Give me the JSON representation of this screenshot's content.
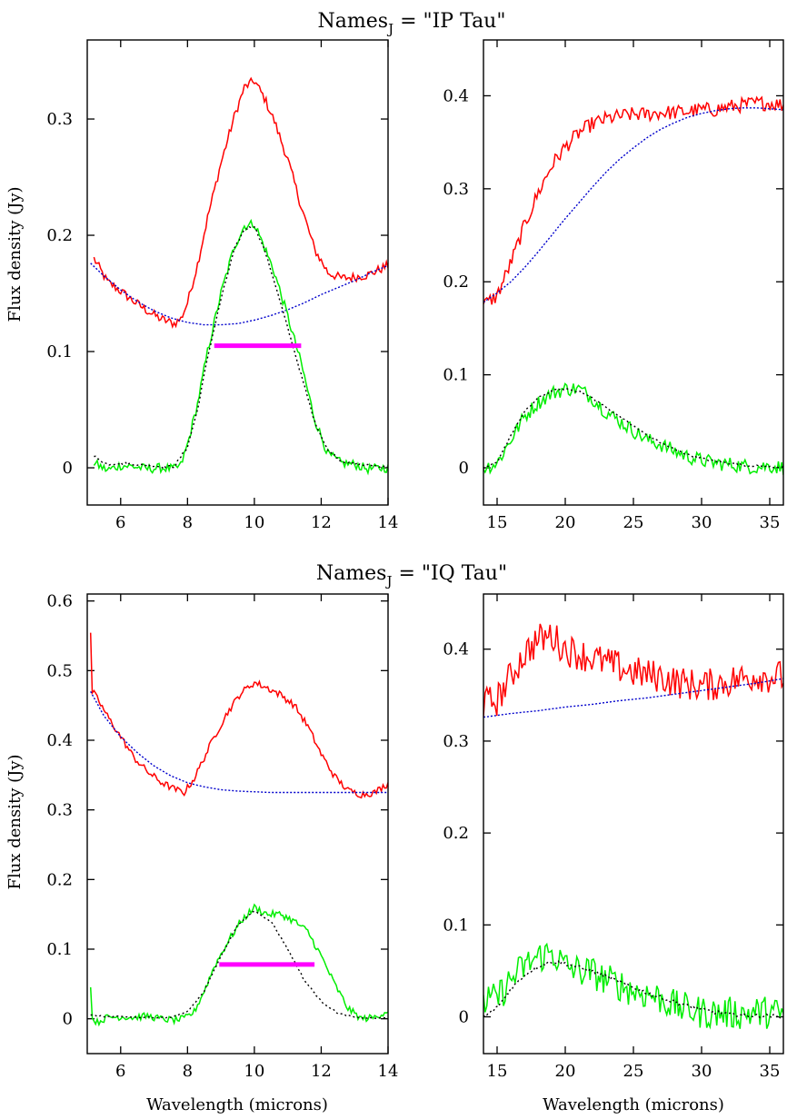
{
  "figure": {
    "ylabel": "Flux density (Jy)",
    "xlabel": "Wavelength (microns)"
  },
  "colors": {
    "observed": "#ff0000",
    "continuum": "#0000cc",
    "residual": "#00ee00",
    "model": "#000000",
    "band": "#ff00ff",
    "axis": "#000000"
  },
  "chart_data": [
    {
      "type": "line",
      "group_title": "Names_J = \"IP Tau\"",
      "title_main": "Names",
      "title_sub": "J",
      "title_rest": " = \"IP Tau\"",
      "panel": "left",
      "xlabel": "",
      "ylabel": "Flux density (Jy)",
      "xlim": [
        5.0,
        14.0
      ],
      "ylim": [
        -0.032,
        0.368
      ],
      "xticks": [
        6,
        8,
        10,
        12,
        14
      ],
      "yticks": [
        0,
        0.1,
        0.2,
        0.3
      ],
      "ytick_labels": [
        "0",
        "0.1",
        "0.2",
        "0.3"
      ],
      "noise": 0.004,
      "series": [
        {
          "name": "observed",
          "color": "#ff0000",
          "dash": "",
          "jitter": 0.004,
          "x": [
            5.2,
            5.6,
            6.0,
            6.4,
            6.8,
            7.2,
            7.6,
            7.8,
            8.0,
            8.3,
            8.6,
            9.0,
            9.4,
            9.7,
            10.0,
            10.3,
            10.6,
            11.0,
            11.4,
            11.8,
            12.2,
            12.6,
            13.0,
            13.4,
            14.0
          ],
          "y": [
            0.18,
            0.16,
            0.152,
            0.143,
            0.135,
            0.128,
            0.124,
            0.128,
            0.142,
            0.175,
            0.215,
            0.262,
            0.302,
            0.327,
            0.333,
            0.318,
            0.298,
            0.265,
            0.225,
            0.188,
            0.168,
            0.163,
            0.164,
            0.166,
            0.174
          ]
        },
        {
          "name": "continuum",
          "color": "#0000cc",
          "dash": "2,2",
          "jitter": 0,
          "x": [
            5.1,
            5.5,
            6.0,
            6.5,
            7.0,
            7.5,
            8.0,
            8.5,
            9.0,
            9.5,
            10.0,
            10.5,
            11.0,
            11.5,
            12.0,
            12.5,
            13.0,
            13.5,
            14.0
          ],
          "y": [
            0.176,
            0.165,
            0.153,
            0.143,
            0.135,
            0.129,
            0.125,
            0.123,
            0.123,
            0.124,
            0.127,
            0.131,
            0.136,
            0.142,
            0.149,
            0.155,
            0.161,
            0.168,
            0.174
          ]
        },
        {
          "name": "residual",
          "color": "#00ee00",
          "dash": "",
          "jitter": 0.004,
          "x": [
            5.2,
            5.6,
            6.0,
            6.4,
            6.8,
            7.2,
            7.6,
            7.8,
            8.0,
            8.3,
            8.6,
            9.0,
            9.4,
            9.7,
            10.0,
            10.3,
            10.6,
            11.0,
            11.4,
            11.8,
            12.2,
            12.6,
            13.0,
            13.4,
            14.0
          ],
          "y": [
            0.004,
            -0.002,
            0.002,
            0.001,
            -0.001,
            0.0,
            -0.001,
            0.002,
            0.02,
            0.055,
            0.1,
            0.15,
            0.19,
            0.208,
            0.21,
            0.19,
            0.168,
            0.13,
            0.09,
            0.042,
            0.012,
            0.004,
            0.003,
            -0.001,
            0.0
          ]
        },
        {
          "name": "model",
          "color": "#000000",
          "dash": "2,3",
          "jitter": 0.001,
          "x": [
            5.2,
            5.6,
            6.0,
            6.4,
            6.8,
            7.2,
            7.6,
            8.0,
            8.3,
            8.6,
            9.0,
            9.4,
            9.7,
            10.0,
            10.3,
            10.6,
            11.0,
            11.4,
            11.8,
            12.2,
            12.6,
            13.0,
            13.4,
            14.0
          ],
          "y": [
            0.01,
            0.003,
            0.004,
            0.003,
            0.002,
            0.001,
            0.001,
            0.018,
            0.05,
            0.095,
            0.145,
            0.188,
            0.205,
            0.208,
            0.188,
            0.16,
            0.12,
            0.08,
            0.04,
            0.015,
            0.006,
            0.003,
            0.002,
            0.001
          ]
        }
      ],
      "band": {
        "x": [
          8.8,
          11.4
        ],
        "y": 0.105
      }
    },
    {
      "type": "line",
      "panel": "right",
      "xlabel": "",
      "xlim": [
        14.0,
        36.0
      ],
      "ylim": [
        -0.04,
        0.46
      ],
      "xticks": [
        15,
        20,
        25,
        30,
        35
      ],
      "yticks": [
        0,
        0.1,
        0.2,
        0.3,
        0.4
      ],
      "ytick_labels": [
        "0",
        "0.1",
        "0.2",
        "0.3",
        "0.4"
      ],
      "series": [
        {
          "name": "observed",
          "color": "#ff0000",
          "dash": "",
          "jitter": 0.008,
          "x": [
            14.0,
            15.0,
            16.0,
            17.0,
            18.0,
            19.0,
            20.0,
            21.0,
            22.0,
            23.0,
            24.0,
            25.0,
            26.0,
            27.0,
            28.0,
            29.0,
            30.0,
            31.0,
            32.0,
            33.0,
            34.0,
            35.0,
            36.0
          ],
          "y": [
            0.175,
            0.185,
            0.22,
            0.26,
            0.295,
            0.325,
            0.345,
            0.36,
            0.37,
            0.375,
            0.378,
            0.38,
            0.38,
            0.382,
            0.382,
            0.383,
            0.385,
            0.385,
            0.388,
            0.39,
            0.392,
            0.392,
            0.39
          ]
        },
        {
          "name": "continuum",
          "color": "#0000cc",
          "dash": "2,2",
          "jitter": 0,
          "x": [
            14.0,
            15.0,
            16.0,
            17.0,
            18.0,
            19.0,
            20.0,
            21.0,
            22.0,
            23.0,
            24.0,
            25.0,
            26.0,
            27.0,
            28.0,
            29.0,
            30.0,
            31.0,
            32.0,
            33.0,
            34.0,
            35.0,
            36.0
          ],
          "y": [
            0.178,
            0.188,
            0.2,
            0.215,
            0.232,
            0.25,
            0.268,
            0.285,
            0.302,
            0.318,
            0.332,
            0.344,
            0.355,
            0.364,
            0.371,
            0.377,
            0.381,
            0.384,
            0.386,
            0.387,
            0.387,
            0.386,
            0.385
          ]
        },
        {
          "name": "residual",
          "color": "#00ee00",
          "dash": "",
          "jitter": 0.008,
          "x": [
            14.0,
            15.0,
            16.0,
            17.0,
            18.0,
            19.0,
            20.0,
            21.0,
            22.0,
            23.0,
            24.0,
            25.0,
            26.0,
            27.0,
            28.0,
            29.0,
            30.0,
            31.0,
            32.0,
            33.0,
            34.0,
            35.0,
            36.0
          ],
          "y": [
            0.0,
            0.005,
            0.03,
            0.055,
            0.07,
            0.08,
            0.085,
            0.085,
            0.075,
            0.06,
            0.05,
            0.04,
            0.03,
            0.025,
            0.018,
            0.012,
            0.008,
            0.005,
            0.004,
            0.002,
            0.001,
            0.002,
            0.0
          ]
        },
        {
          "name": "model",
          "color": "#000000",
          "dash": "2,3",
          "jitter": 0.001,
          "x": [
            14.0,
            15.0,
            16.0,
            17.0,
            18.0,
            19.0,
            20.0,
            21.0,
            22.0,
            23.0,
            24.0,
            25.0,
            26.0,
            27.0,
            28.0,
            29.0,
            30.0,
            31.0,
            32.0,
            33.0,
            34.0,
            35.0,
            36.0
          ],
          "y": [
            0.0,
            0.005,
            0.035,
            0.06,
            0.075,
            0.083,
            0.085,
            0.082,
            0.075,
            0.065,
            0.055,
            0.045,
            0.035,
            0.027,
            0.02,
            0.014,
            0.01,
            0.007,
            0.005,
            0.003,
            0.002,
            0.001,
            0.001
          ]
        }
      ]
    },
    {
      "type": "line",
      "group_title": "Names_J = \"IQ Tau\"",
      "title_main": "Names",
      "title_sub": "J",
      "title_rest": " = \"IQ Tau\"",
      "panel": "left",
      "xlabel": "Wavelength (microns)",
      "ylabel": "Flux density (Jy)",
      "xlim": [
        5.0,
        14.0
      ],
      "ylim": [
        -0.05,
        0.61
      ],
      "xticks": [
        6,
        8,
        10,
        12,
        14
      ],
      "yticks": [
        0,
        0.1,
        0.2,
        0.3,
        0.4,
        0.5,
        0.6
      ],
      "ytick_labels": [
        "0",
        "0.1",
        "0.2",
        "0.3",
        "0.4",
        "0.5",
        "0.6"
      ],
      "series": [
        {
          "name": "observed",
          "color": "#ff0000",
          "dash": "",
          "jitter": 0.005,
          "x": [
            5.1,
            5.15,
            5.3,
            5.6,
            6.0,
            6.4,
            6.8,
            7.2,
            7.6,
            7.9,
            8.2,
            8.5,
            8.8,
            9.2,
            9.6,
            10.0,
            10.4,
            10.8,
            11.2,
            11.6,
            12.0,
            12.4,
            12.8,
            13.2,
            13.6,
            14.0
          ],
          "y": [
            0.55,
            0.47,
            0.46,
            0.435,
            0.405,
            0.375,
            0.355,
            0.34,
            0.33,
            0.325,
            0.345,
            0.375,
            0.405,
            0.44,
            0.468,
            0.483,
            0.475,
            0.465,
            0.45,
            0.42,
            0.38,
            0.348,
            0.328,
            0.322,
            0.325,
            0.338
          ]
        },
        {
          "name": "continuum",
          "color": "#0000cc",
          "dash": "2,2",
          "jitter": 0,
          "x": [
            5.1,
            5.5,
            6.0,
            6.5,
            7.0,
            7.5,
            8.0,
            8.5,
            9.0,
            9.5,
            10.0,
            10.5,
            11.0,
            11.5,
            12.0,
            12.5,
            13.0,
            13.5,
            14.0
          ],
          "y": [
            0.47,
            0.435,
            0.405,
            0.382,
            0.363,
            0.349,
            0.339,
            0.333,
            0.329,
            0.327,
            0.326,
            0.325,
            0.325,
            0.325,
            0.325,
            0.325,
            0.325,
            0.325,
            0.325
          ]
        },
        {
          "name": "residual",
          "color": "#00ee00",
          "dash": "",
          "jitter": 0.005,
          "x": [
            5.1,
            5.15,
            5.3,
            5.6,
            6.0,
            6.4,
            6.8,
            7.2,
            7.6,
            7.9,
            8.2,
            8.5,
            8.8,
            9.2,
            9.6,
            10.0,
            10.4,
            10.8,
            11.2,
            11.6,
            12.0,
            12.4,
            12.8,
            13.2,
            13.6,
            14.0
          ],
          "y": [
            0.05,
            0.0,
            -0.005,
            0.002,
            0.003,
            0.002,
            0.004,
            0.0,
            -0.002,
            0.0,
            0.01,
            0.04,
            0.075,
            0.11,
            0.14,
            0.16,
            0.15,
            0.15,
            0.14,
            0.125,
            0.09,
            0.05,
            0.015,
            0.0,
            0.002,
            0.012
          ]
        },
        {
          "name": "model",
          "color": "#000000",
          "dash": "2,3",
          "jitter": 0.001,
          "x": [
            5.1,
            5.5,
            6.0,
            6.5,
            7.0,
            7.5,
            8.0,
            8.5,
            9.0,
            9.5,
            10.0,
            10.5,
            11.0,
            11.5,
            12.0,
            12.5,
            13.0,
            13.5,
            14.0
          ],
          "y": [
            0.005,
            0.003,
            0.003,
            0.002,
            0.002,
            0.002,
            0.01,
            0.04,
            0.09,
            0.135,
            0.155,
            0.14,
            0.1,
            0.055,
            0.025,
            0.008,
            0.002,
            0.001,
            0.001
          ]
        }
      ],
      "band": {
        "x": [
          8.95,
          11.8
        ],
        "y": 0.078
      }
    },
    {
      "type": "line",
      "panel": "right",
      "xlabel": "Wavelength (microns)",
      "xlim": [
        14.0,
        36.0
      ],
      "ylim": [
        -0.04,
        0.46
      ],
      "xticks": [
        15,
        20,
        25,
        30,
        35
      ],
      "yticks": [
        0,
        0.1,
        0.2,
        0.3,
        0.4
      ],
      "ytick_labels": [
        "0",
        "0.1",
        "0.2",
        "0.3",
        "0.4"
      ],
      "series": [
        {
          "name": "observed",
          "color": "#ff0000",
          "dash": "",
          "jitter": 0.018,
          "x": [
            14.0,
            15.0,
            16.0,
            17.0,
            18.0,
            19.0,
            20.0,
            21.0,
            22.0,
            23.0,
            24.0,
            25.0,
            26.0,
            27.0,
            28.0,
            29.0,
            30.0,
            31.0,
            32.0,
            33.0,
            34.0,
            35.0,
            36.0
          ],
          "y": [
            0.34,
            0.345,
            0.37,
            0.395,
            0.41,
            0.415,
            0.4,
            0.395,
            0.39,
            0.385,
            0.38,
            0.375,
            0.372,
            0.37,
            0.365,
            0.362,
            0.36,
            0.362,
            0.365,
            0.368,
            0.372,
            0.37,
            0.37
          ]
        },
        {
          "name": "continuum",
          "color": "#0000cc",
          "dash": "2,2",
          "jitter": 0,
          "x": [
            14.0,
            16.0,
            18.0,
            20.0,
            22.0,
            24.0,
            26.0,
            28.0,
            30.0,
            32.0,
            34.0,
            36.0
          ],
          "y": [
            0.326,
            0.33,
            0.333,
            0.337,
            0.34,
            0.344,
            0.347,
            0.351,
            0.355,
            0.359,
            0.363,
            0.368
          ]
        },
        {
          "name": "residual",
          "color": "#00ee00",
          "dash": "",
          "jitter": 0.018,
          "x": [
            14.0,
            15.0,
            16.0,
            17.0,
            18.0,
            19.0,
            20.0,
            21.0,
            22.0,
            23.0,
            24.0,
            25.0,
            26.0,
            27.0,
            28.0,
            29.0,
            30.0,
            31.0,
            32.0,
            33.0,
            34.0,
            35.0,
            36.0
          ],
          "y": [
            0.015,
            0.02,
            0.04,
            0.055,
            0.065,
            0.07,
            0.055,
            0.05,
            0.048,
            0.04,
            0.035,
            0.028,
            0.025,
            0.02,
            0.012,
            0.008,
            0.005,
            0.004,
            0.004,
            0.004,
            0.005,
            0.005,
            0.002
          ]
        },
        {
          "name": "model",
          "color": "#000000",
          "dash": "2,3",
          "jitter": 0.002,
          "x": [
            14.0,
            15.0,
            16.0,
            17.0,
            18.0,
            19.0,
            20.0,
            21.0,
            22.0,
            23.0,
            24.0,
            25.0,
            26.0,
            27.0,
            28.0,
            29.0,
            30.0,
            31.0,
            32.0,
            33.0,
            34.0,
            35.0,
            36.0
          ],
          "y": [
            0.0,
            0.01,
            0.03,
            0.045,
            0.055,
            0.06,
            0.058,
            0.054,
            0.05,
            0.044,
            0.038,
            0.032,
            0.026,
            0.021,
            0.016,
            0.012,
            0.008,
            0.005,
            0.003,
            0.002,
            0.001,
            0.001,
            0.0
          ]
        }
      ]
    }
  ]
}
